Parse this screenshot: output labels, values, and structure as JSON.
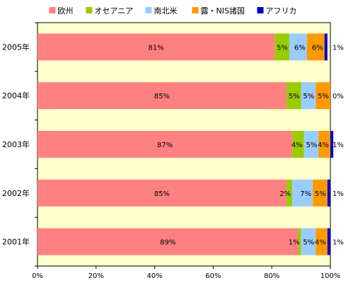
{
  "chart_data": {
    "type": "bar",
    "orientation": "horizontal",
    "stacked": true,
    "percent": true,
    "categories": [
      "2005年",
      "2004年",
      "2003年",
      "2002年",
      "2001年"
    ],
    "series": [
      {
        "name": "欧州",
        "color": "#ff8080",
        "values": [
          81,
          85,
          87,
          85,
          89
        ],
        "labels": [
          "81%",
          "85%",
          "87%",
          "85%",
          "89%"
        ]
      },
      {
        "name": "オセアニア",
        "color": "#99cc00",
        "values": [
          5,
          5,
          4,
          2,
          1
        ],
        "labels": [
          "5%",
          "5%",
          "4%",
          "2%",
          "1%"
        ]
      },
      {
        "name": "南北米",
        "color": "#99ccff",
        "values": [
          6,
          5,
          5,
          7,
          5
        ],
        "labels": [
          "6%",
          "5%",
          "5%",
          "7%",
          "5%"
        ]
      },
      {
        "name": "露・NIS諸国",
        "color": "#ff9900",
        "values": [
          6,
          5,
          4,
          5,
          4
        ],
        "labels": [
          "6%",
          "5%",
          "4%",
          "5%",
          "4%"
        ]
      },
      {
        "name": "アフリカ",
        "color": "#0000cc",
        "values": [
          1,
          0,
          1,
          1,
          1
        ],
        "labels": [
          "1%",
          "0%",
          "1%",
          "1%",
          "1%"
        ]
      }
    ],
    "xlim": [
      0,
      100
    ],
    "xticks": [
      "0%",
      "20%",
      "40%",
      "60%",
      "80%",
      "100%"
    ],
    "grid": false,
    "plot_background": "#ffffcc",
    "legend": "top"
  }
}
